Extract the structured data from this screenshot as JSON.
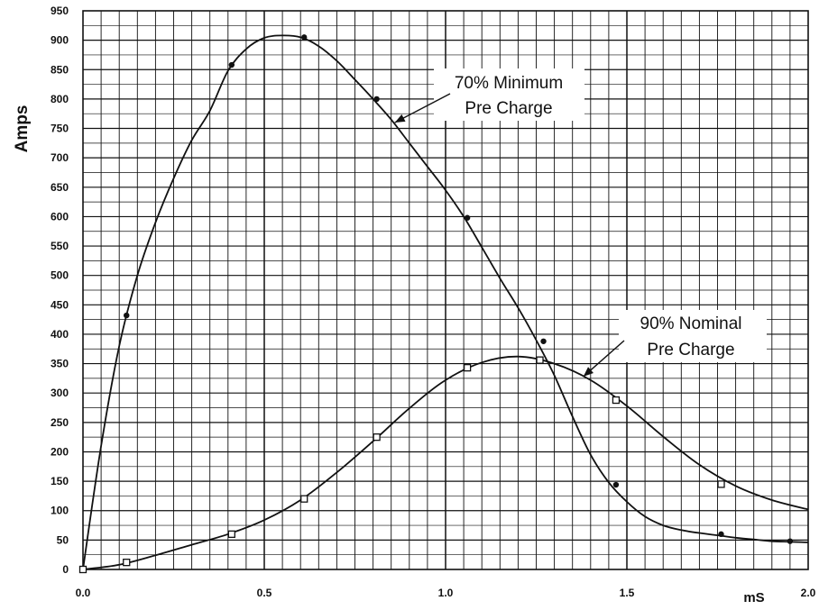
{
  "chart_data": {
    "type": "line",
    "title": "",
    "xlabel": "mS",
    "ylabel": "Amps",
    "xlim": [
      0.0,
      2.0
    ],
    "ylim": [
      0,
      950
    ],
    "x_ticks": [
      "0.0",
      "0.5",
      "1.0",
      "1.5",
      "2.0"
    ],
    "y_ticks": [
      "0",
      "50",
      "100",
      "150",
      "200",
      "250",
      "300",
      "350",
      "400",
      "450",
      "500",
      "550",
      "600",
      "650",
      "700",
      "750",
      "800",
      "850",
      "900",
      "950"
    ],
    "grid": true,
    "series": [
      {
        "name": "",
        "marker": "dot",
        "curve": [
          [
            0,
            0
          ],
          [
            0.05,
            210
          ],
          [
            0.1,
            380
          ],
          [
            0.15,
            500
          ],
          [
            0.2,
            590
          ],
          [
            0.25,
            665
          ],
          [
            0.3,
            730
          ],
          [
            0.35,
            780
          ],
          [
            0.4,
            848
          ],
          [
            0.45,
            885
          ],
          [
            0.5,
            904
          ],
          [
            0.55,
            908
          ],
          [
            0.6,
            905
          ],
          [
            0.65,
            890
          ],
          [
            0.7,
            865
          ],
          [
            0.75,
            833
          ],
          [
            0.8,
            800
          ],
          [
            0.85,
            765
          ],
          [
            0.9,
            725
          ],
          [
            0.95,
            685
          ],
          [
            1.0,
            645
          ],
          [
            1.05,
            600
          ],
          [
            1.1,
            548
          ],
          [
            1.15,
            495
          ],
          [
            1.2,
            445
          ],
          [
            1.25,
            390
          ],
          [
            1.3,
            330
          ],
          [
            1.35,
            260
          ],
          [
            1.4,
            195
          ],
          [
            1.45,
            148
          ],
          [
            1.5,
            115
          ],
          [
            1.55,
            90
          ],
          [
            1.6,
            75
          ],
          [
            1.65,
            67
          ],
          [
            1.7,
            62
          ],
          [
            1.75,
            58
          ],
          [
            1.8,
            54
          ],
          [
            1.85,
            51
          ],
          [
            1.9,
            48
          ],
          [
            1.95,
            47
          ],
          [
            2.0,
            46
          ]
        ],
        "points": [
          [
            0.0,
            0
          ],
          [
            0.12,
            432
          ],
          [
            0.41,
            858
          ],
          [
            0.61,
            905
          ],
          [
            0.81,
            800
          ],
          [
            1.06,
            598
          ],
          [
            1.27,
            388
          ],
          [
            1.47,
            144
          ],
          [
            1.76,
            60
          ],
          [
            1.95,
            48
          ]
        ]
      },
      {
        "name": "",
        "marker": "square",
        "curve": [
          [
            0,
            0
          ],
          [
            0.1,
            8
          ],
          [
            0.2,
            24
          ],
          [
            0.3,
            42
          ],
          [
            0.4,
            60
          ],
          [
            0.5,
            84
          ],
          [
            0.6,
            118
          ],
          [
            0.7,
            165
          ],
          [
            0.8,
            218
          ],
          [
            0.9,
            274
          ],
          [
            1.0,
            322
          ],
          [
            1.1,
            352
          ],
          [
            1.2,
            362
          ],
          [
            1.3,
            350
          ],
          [
            1.4,
            322
          ],
          [
            1.5,
            278
          ],
          [
            1.6,
            226
          ],
          [
            1.7,
            178
          ],
          [
            1.8,
            142
          ],
          [
            1.9,
            118
          ],
          [
            2.0,
            102
          ]
        ],
        "points": [
          [
            0.0,
            0
          ],
          [
            0.12,
            12
          ],
          [
            0.41,
            60
          ],
          [
            0.61,
            120
          ],
          [
            0.81,
            225
          ],
          [
            1.06,
            343
          ],
          [
            1.26,
            356
          ],
          [
            1.47,
            288
          ],
          [
            1.76,
            145
          ]
        ]
      }
    ],
    "annotations": [
      {
        "lines": [
          "70% Minimum",
          "Pre Charge"
        ],
        "target": [
          0.86,
          760
        ]
      },
      {
        "lines": [
          "90% Nominal",
          "Pre Charge"
        ],
        "target": [
          1.38,
          328
        ]
      }
    ]
  }
}
